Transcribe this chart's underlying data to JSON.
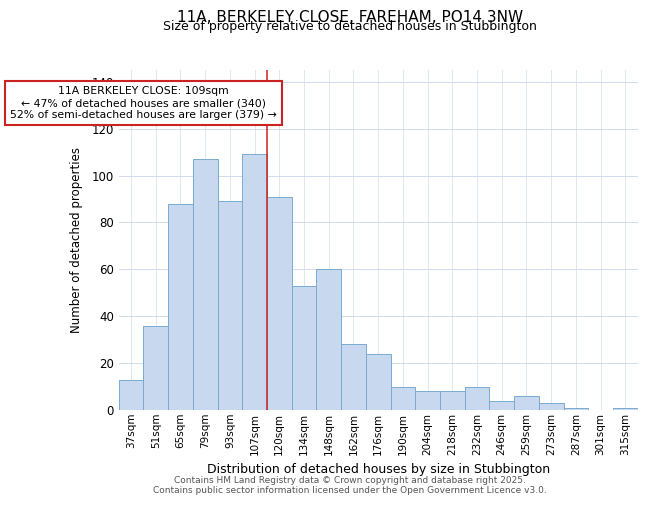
{
  "title_line1": "11A, BERKELEY CLOSE, FAREHAM, PO14 3NW",
  "title_line2": "Size of property relative to detached houses in Stubbington",
  "xlabel": "Distribution of detached houses by size in Stubbington",
  "ylabel": "Number of detached properties",
  "categories": [
    "37sqm",
    "51sqm",
    "65sqm",
    "79sqm",
    "93sqm",
    "107sqm",
    "120sqm",
    "134sqm",
    "148sqm",
    "162sqm",
    "176sqm",
    "190sqm",
    "204sqm",
    "218sqm",
    "232sqm",
    "246sqm",
    "259sqm",
    "273sqm",
    "287sqm",
    "301sqm",
    "315sqm"
  ],
  "values": [
    13,
    36,
    88,
    107,
    89,
    109,
    91,
    53,
    60,
    28,
    24,
    10,
    8,
    8,
    10,
    4,
    6,
    3,
    1,
    0,
    1
  ],
  "bar_color": "#c8d8ee",
  "bar_edge_color": "#7aaad0",
  "property_line_x": 5.5,
  "property_label": "11A BERKELEY CLOSE: 109sqm",
  "annotation_line1": "← 47% of detached houses are smaller (340)",
  "annotation_line2": "52% of semi-detached houses are larger (379) →",
  "annotation_box_color": "#cc2222",
  "ylim": [
    0,
    145
  ],
  "yticks": [
    0,
    20,
    40,
    60,
    80,
    100,
    120,
    140
  ],
  "grid_color": "#d0dcec",
  "bg_color": "#ffffff",
  "footer_line1": "Contains HM Land Registry data © Crown copyright and database right 2025.",
  "footer_line2": "Contains public sector information licensed under the Open Government Licence v3.0."
}
